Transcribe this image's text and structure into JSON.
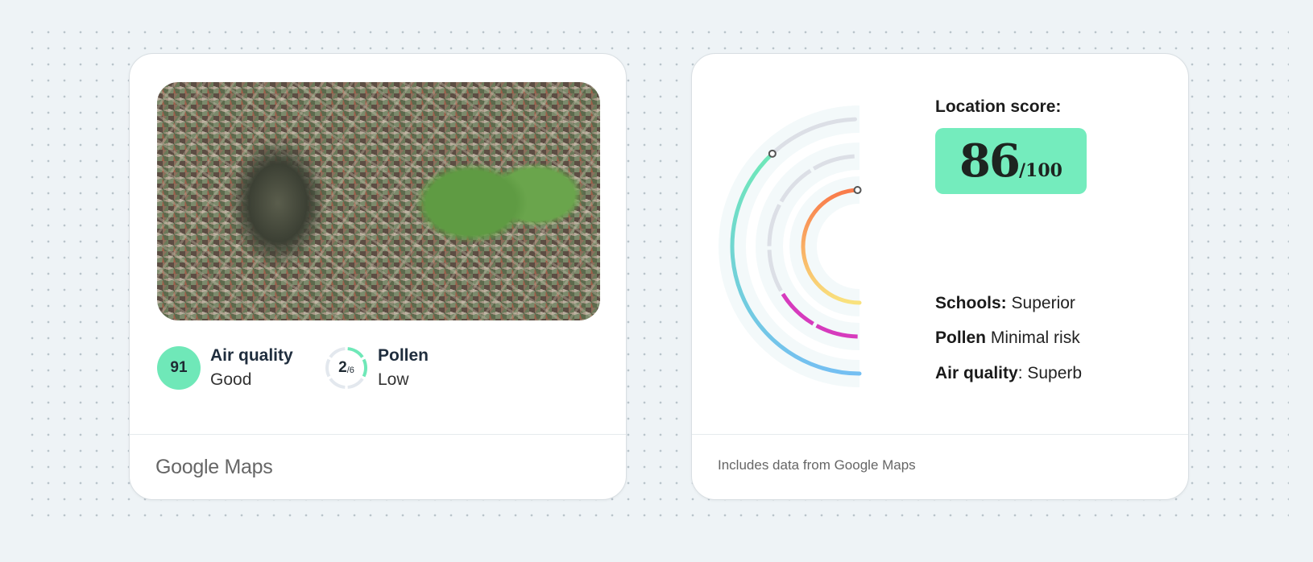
{
  "air_quality_card": {
    "air_quality": {
      "value": "91",
      "title": "Air quality",
      "status": "Good"
    },
    "pollen": {
      "value": "2",
      "max": "/6",
      "title": "Pollen",
      "status": "Low",
      "fraction": 0.333
    },
    "footer": "Google Maps",
    "accent": "#6fe8b8"
  },
  "location_card": {
    "label": "Location score:",
    "score": "86",
    "score_max": "/100",
    "legend": [
      {
        "key": "Schools:",
        "value": "Superior"
      },
      {
        "key": "Pollen",
        "value": "Minimal risk"
      },
      {
        "key": "Air quality",
        "value": ": Superb"
      }
    ],
    "rings": {
      "schools_fraction": 1.0,
      "pollen_segments_filled": 2,
      "pollen_segments_total": 6,
      "air_quality_fraction": 0.76
    },
    "colors": {
      "schools": [
        "#f97a4a",
        "#f9e27e"
      ],
      "pollen": "#d63bbd",
      "air_quality": [
        "#6fe8b8",
        "#74bff2"
      ],
      "track": "#dcdfe6"
    },
    "footer": "Includes data from Google Maps"
  }
}
